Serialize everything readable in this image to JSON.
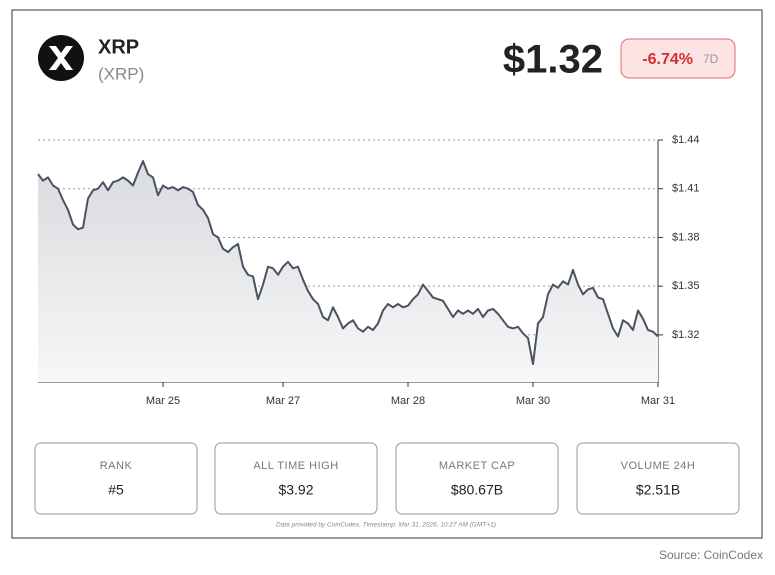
{
  "header": {
    "name": "XRP",
    "symbol": "(XRP)",
    "price": "$1.32",
    "change": "-6.74%",
    "period": "7D"
  },
  "chart_data": {
    "type": "area",
    "categories": [
      null,
      null,
      null,
      null,
      null,
      null,
      null,
      null,
      null,
      null,
      null,
      null,
      null,
      null,
      null,
      null,
      null,
      null,
      null,
      null,
      null,
      null,
      null,
      null,
      null,
      "Mar 25",
      null,
      null,
      null,
      null,
      null,
      null,
      null,
      null,
      null,
      null,
      null,
      null,
      null,
      null,
      null,
      null,
      null,
      null,
      null,
      null,
      null,
      null,
      null,
      "Mar 27",
      null,
      null,
      null,
      null,
      null,
      null,
      null,
      null,
      null,
      null,
      null,
      null,
      null,
      null,
      null,
      null,
      null,
      null,
      null,
      null,
      null,
      null,
      null,
      null,
      "Mar 28",
      null,
      null,
      null,
      null,
      null,
      null,
      null,
      null,
      null,
      null,
      null,
      null,
      null,
      null,
      null,
      null,
      null,
      null,
      null,
      null,
      null,
      null,
      null,
      null,
      "Mar 30",
      null,
      null,
      null,
      null,
      null,
      null,
      null,
      null,
      null,
      null,
      null,
      null,
      null,
      null,
      null,
      null,
      null,
      null,
      null,
      null,
      null,
      null,
      null,
      null,
      "Mar 31"
    ],
    "series": [
      {
        "color": "#4a5260",
        "values": [
          1.419,
          1.415,
          1.417,
          1.412,
          1.41,
          1.403,
          1.397,
          1.388,
          1.385,
          1.386,
          1.404,
          1.409,
          1.41,
          1.414,
          1.409,
          1.414,
          1.415,
          1.417,
          1.415,
          1.412,
          1.42,
          1.427,
          1.419,
          1.417,
          1.406,
          1.412,
          1.41,
          1.411,
          1.409,
          1.411,
          1.41,
          1.408,
          1.4,
          1.397,
          1.392,
          1.382,
          1.38,
          1.373,
          1.371,
          1.374,
          1.376,
          1.362,
          1.357,
          1.356,
          1.342,
          1.351,
          1.362,
          1.361,
          1.357,
          1.362,
          1.365,
          1.361,
          1.362,
          1.354,
          1.347,
          1.342,
          1.339,
          1.331,
          1.329,
          1.337,
          1.331,
          1.324,
          1.327,
          1.329,
          1.324,
          1.322,
          1.325,
          1.323,
          1.327,
          1.335,
          1.339,
          1.337,
          1.339,
          1.337,
          1.338,
          1.342,
          1.345,
          1.351,
          1.347,
          1.343,
          1.342,
          1.341,
          1.336,
          1.331,
          1.335,
          1.333,
          1.335,
          1.333,
          1.336,
          1.331,
          1.335,
          1.336,
          1.333,
          1.329,
          1.325,
          1.324,
          1.325,
          1.321,
          1.318,
          1.302,
          1.327,
          1.331,
          1.345,
          1.351,
          1.349,
          1.353,
          1.351,
          1.36,
          1.351,
          1.345,
          1.348,
          1.349,
          1.343,
          1.342,
          1.333,
          1.324,
          1.319,
          1.329,
          1.327,
          1.323,
          1.335,
          1.33,
          1.323,
          1.322,
          1.319
        ]
      }
    ],
    "ylim": [
      1.291,
      1.44
    ],
    "yticks": [
      {
        "value": 1.32,
        "label": "$1.32"
      },
      {
        "value": 1.35,
        "label": "$1.35"
      },
      {
        "value": 1.38,
        "label": "$1.38"
      },
      {
        "value": 1.41,
        "label": "$1.41"
      },
      {
        "value": 1.44,
        "label": "$1.44"
      }
    ],
    "grid": true
  },
  "stats": [
    {
      "label": "RANK",
      "value": "#5"
    },
    {
      "label": "ALL TIME HIGH",
      "value": "$3.92"
    },
    {
      "label": "MARKET CAP",
      "value": "$80.67B"
    },
    {
      "label": "VOLUME 24H",
      "value": "$2.51B"
    }
  ],
  "footnote": "Data provided by CoinCodex. Timestamp: Mar 31, 2026, 10:27 AM (GMT+1)",
  "source": "Source: CoinCodex"
}
